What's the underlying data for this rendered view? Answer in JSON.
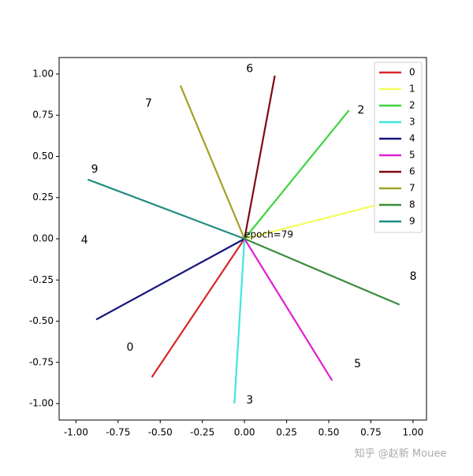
{
  "chart_data": {
    "type": "line",
    "series": [
      {
        "name": "0",
        "color": "#d8262e",
        "x": [
          0,
          -0.55
        ],
        "values": [
          0,
          -0.84
        ]
      },
      {
        "name": "1",
        "color": "#f2ff5c",
        "x": [
          0,
          0.88
        ],
        "values": [
          0,
          0.23
        ]
      },
      {
        "name": "2",
        "color": "#3fd43f",
        "x": [
          0,
          0.62
        ],
        "values": [
          0,
          0.78
        ]
      },
      {
        "name": "3",
        "color": "#3fe6e0",
        "x": [
          0,
          -0.06
        ],
        "values": [
          0,
          -1.0
        ]
      },
      {
        "name": "4",
        "color": "#14147e",
        "x": [
          0,
          -0.88
        ],
        "values": [
          0,
          -0.49
        ]
      },
      {
        "name": "5",
        "color": "#e020d2",
        "x": [
          0,
          0.52
        ],
        "values": [
          0,
          -0.86
        ]
      },
      {
        "name": "6",
        "color": "#7e0814",
        "x": [
          0,
          0.18
        ],
        "values": [
          0,
          0.99
        ]
      },
      {
        "name": "7",
        "color": "#a2a226",
        "x": [
          0,
          -0.38
        ],
        "values": [
          0,
          0.93
        ]
      },
      {
        "name": "8",
        "color": "#3c8c3c",
        "x": [
          0,
          0.92
        ],
        "values": [
          0,
          -0.4
        ]
      },
      {
        "name": "9",
        "color": "#1f8c80",
        "x": [
          0,
          -0.93
        ],
        "values": [
          0,
          0.36
        ]
      }
    ],
    "point_labels": [
      {
        "text": "0",
        "x": -0.7,
        "y": -0.66
      },
      {
        "text": "2",
        "x": 0.67,
        "y": 0.78
      },
      {
        "text": "3",
        "x": 0.01,
        "y": -0.98
      },
      {
        "text": "4",
        "x": -0.97,
        "y": -0.01
      },
      {
        "text": "5",
        "x": 0.65,
        "y": -0.76
      },
      {
        "text": "6",
        "x": 0.01,
        "y": 1.03
      },
      {
        "text": "7",
        "x": -0.59,
        "y": 0.82
      },
      {
        "text": "8",
        "x": 0.98,
        "y": -0.23
      },
      {
        "text": "9",
        "x": -0.91,
        "y": 0.42
      }
    ],
    "annotation": {
      "text": "epoch=79",
      "x": 0,
      "y": 0
    },
    "xlim": [
      -1.1,
      1.08
    ],
    "ylim": [
      -1.1,
      1.1
    ],
    "xticks": [
      {
        "value": -1,
        "label": "-1.00"
      },
      {
        "value": -0.75,
        "label": "-0.75"
      },
      {
        "value": -0.5,
        "label": "-0.50"
      },
      {
        "value": -0.25,
        "label": "-0.25"
      },
      {
        "value": 0,
        "label": "0.00"
      },
      {
        "value": 0.25,
        "label": "0.25"
      },
      {
        "value": 0.5,
        "label": "0.50"
      },
      {
        "value": 0.75,
        "label": "0.75"
      },
      {
        "value": 1,
        "label": "1.00"
      }
    ],
    "yticks": [
      {
        "value": -1,
        "label": "-1.00"
      },
      {
        "value": -0.75,
        "label": "-0.75"
      },
      {
        "value": -0.5,
        "label": "-0.50"
      },
      {
        "value": -0.25,
        "label": "-0.25"
      },
      {
        "value": 0,
        "label": "0.00"
      },
      {
        "value": 0.25,
        "label": "0.25"
      },
      {
        "value": 0.5,
        "label": "0.50"
      },
      {
        "value": 0.75,
        "label": "0.75"
      },
      {
        "value": 1,
        "label": "1.00"
      }
    ],
    "legend": "upper right",
    "watermark": "知乎 @赵新 Mouee"
  }
}
